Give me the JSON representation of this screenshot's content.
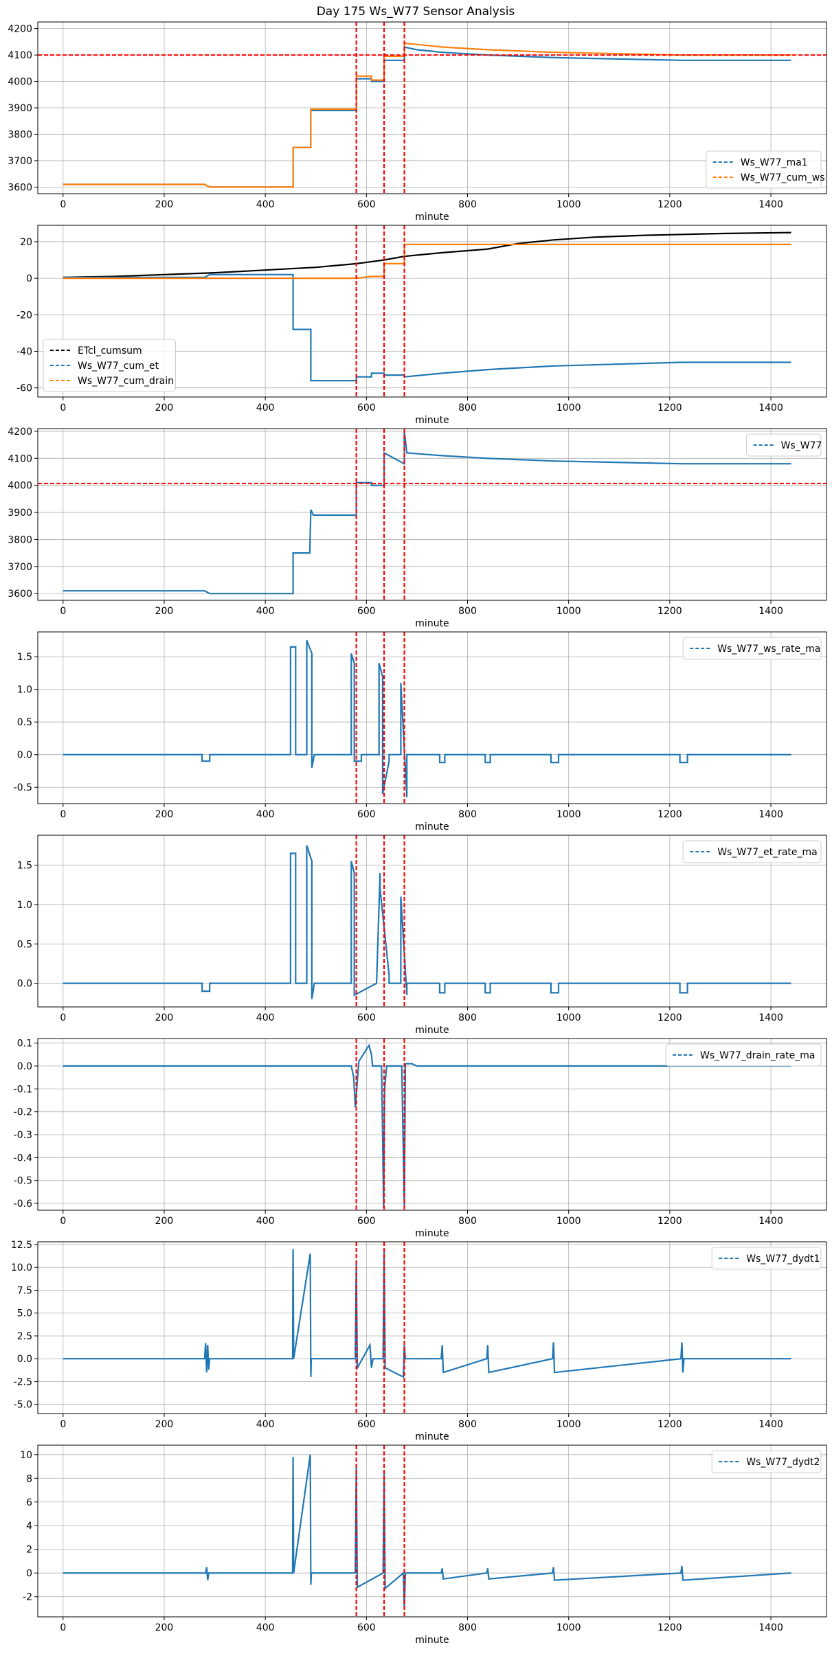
{
  "title": "Day 175 Ws_W77 Sensor Analysis",
  "colors": {
    "blue": "#1f77b4",
    "orange": "#ff7f0e",
    "black": "#000000",
    "red": "#ff0000",
    "grid": "#b0b0b0"
  },
  "event_lines_minute": [
    580,
    635,
    675
  ],
  "chart_data": [
    {
      "type": "line",
      "xlabel": "minute",
      "xlim": [
        -50,
        1510
      ],
      "xticks": [
        0,
        200,
        400,
        600,
        800,
        1000,
        1200,
        1400
      ],
      "ylim": [
        3575,
        4225
      ],
      "yticks": [
        3600,
        3700,
        3800,
        3900,
        4000,
        4100,
        4200
      ],
      "hline": 4100,
      "legend_loc": "lower-right",
      "series": [
        {
          "name": "Ws_W77_ma1",
          "color": "#1f77b4",
          "x": [
            0,
            280,
            290,
            455,
            455,
            490,
            490,
            580,
            580,
            610,
            610,
            635,
            635,
            675,
            675,
            700,
            750,
            840,
            970,
            1225,
            1440
          ],
          "y": [
            3610,
            3610,
            3600,
            3600,
            3750,
            3750,
            3890,
            3890,
            4010,
            4010,
            4000,
            4000,
            4080,
            4080,
            4130,
            4120,
            4110,
            4100,
            4090,
            4080,
            4080
          ]
        },
        {
          "name": "Ws_W77_cum_ws",
          "color": "#ff7f0e",
          "x": [
            0,
            280,
            290,
            455,
            455,
            490,
            490,
            580,
            580,
            610,
            610,
            635,
            635,
            675,
            675,
            750,
            840,
            970,
            1225,
            1440
          ],
          "y": [
            3610,
            3610,
            3600,
            3600,
            3750,
            3750,
            3895,
            3895,
            4020,
            4020,
            4005,
            4005,
            4095,
            4095,
            4145,
            4130,
            4120,
            4110,
            4100,
            4100
          ]
        }
      ]
    },
    {
      "type": "line",
      "xlabel": "minute",
      "xlim": [
        -50,
        1510
      ],
      "xticks": [
        0,
        200,
        400,
        600,
        800,
        1000,
        1200,
        1400
      ],
      "ylim": [
        -65,
        29
      ],
      "yticks": [
        -60,
        -40,
        -20,
        0,
        20
      ],
      "legend_loc": "lower-left",
      "series": [
        {
          "name": "ETcl_cumsum",
          "color": "#000000",
          "x": [
            0,
            100,
            200,
            300,
            400,
            500,
            580,
            635,
            675,
            750,
            840,
            900,
            970,
            1050,
            1150,
            1225,
            1300,
            1440
          ],
          "y": [
            0.5,
            1,
            2,
            3,
            4.5,
            6,
            8,
            10,
            12,
            14,
            16,
            19,
            21,
            22.5,
            23.5,
            24,
            24.5,
            25
          ]
        },
        {
          "name": "Ws_W77_cum_et",
          "color": "#1f77b4",
          "x": [
            0,
            280,
            290,
            455,
            455,
            490,
            490,
            580,
            580,
            610,
            610,
            635,
            635,
            675,
            675,
            750,
            840,
            970,
            1225,
            1440
          ],
          "y": [
            0.5,
            0.5,
            2,
            2,
            -28,
            -28,
            -56,
            -56,
            -54,
            -54,
            -52,
            -52,
            -53,
            -53,
            -54,
            -52,
            -50,
            -48,
            -46,
            -46
          ]
        },
        {
          "name": "Ws_W77_cum_drain",
          "color": "#ff7f0e",
          "x": [
            0,
            575,
            580,
            610,
            610,
            635,
            635,
            675,
            675,
            1440
          ],
          "y": [
            0,
            0,
            0,
            1,
            1,
            1,
            8,
            8,
            18.5,
            18.5
          ]
        }
      ]
    },
    {
      "type": "line",
      "xlabel": "minute",
      "xlim": [
        -50,
        1510
      ],
      "xticks": [
        0,
        200,
        400,
        600,
        800,
        1000,
        1200,
        1400
      ],
      "ylim": [
        3575,
        4210
      ],
      "yticks": [
        3600,
        3700,
        3800,
        3900,
        4000,
        4100,
        4200
      ],
      "hline": 4007,
      "legend_loc": "upper-right",
      "series": [
        {
          "name": "Ws_W77",
          "color": "#1f77b4",
          "x": [
            0,
            280,
            290,
            455,
            455,
            488,
            490,
            495,
            495,
            580,
            580,
            610,
            610,
            635,
            635,
            675,
            675,
            680,
            750,
            840,
            970,
            1225,
            1440
          ],
          "y": [
            3610,
            3610,
            3600,
            3600,
            3750,
            3750,
            3910,
            3890,
            3890,
            3890,
            4010,
            4010,
            4000,
            4000,
            4120,
            4080,
            4200,
            4120,
            4110,
            4100,
            4090,
            4080,
            4080
          ]
        }
      ]
    },
    {
      "type": "line",
      "xlabel": "minute",
      "xlim": [
        -50,
        1510
      ],
      "xticks": [
        0,
        200,
        400,
        600,
        800,
        1000,
        1200,
        1400
      ],
      "ylim": [
        -0.75,
        1.88
      ],
      "yticks": [
        -0.5,
        0.0,
        0.5,
        1.0,
        1.5
      ],
      "legend_loc": "upper-right",
      "series": [
        {
          "name": "Ws_W77_ws_rate_ma",
          "color": "#1f77b4",
          "x": [
            0,
            275,
            275,
            290,
            290,
            450,
            450,
            460,
            460,
            482,
            482,
            492,
            492,
            497,
            497,
            570,
            570,
            576,
            576,
            590,
            590,
            625,
            625,
            632,
            632,
            645,
            645,
            668,
            668,
            680,
            680,
            745,
            745,
            755,
            755,
            835,
            835,
            845,
            845,
            965,
            965,
            980,
            980,
            1220,
            1220,
            1235,
            1235,
            1440
          ],
          "y": [
            0,
            0,
            -0.1,
            -0.1,
            0,
            0,
            1.65,
            1.65,
            0,
            0,
            1.75,
            1.55,
            -0.2,
            0,
            0,
            0,
            1.55,
            1.4,
            -0.1,
            -0.1,
            0,
            0,
            1.4,
            1.2,
            -0.6,
            -0.1,
            0,
            0,
            1.1,
            -0.65,
            0,
            0,
            -0.12,
            -0.12,
            0,
            0,
            -0.12,
            -0.12,
            0,
            0,
            -0.12,
            -0.12,
            0,
            0,
            -0.12,
            -0.12,
            0,
            0
          ]
        }
      ]
    },
    {
      "type": "line",
      "xlabel": "minute",
      "xlim": [
        -50,
        1510
      ],
      "xticks": [
        0,
        200,
        400,
        600,
        800,
        1000,
        1200,
        1400
      ],
      "ylim": [
        -0.3,
        1.88
      ],
      "yticks": [
        0.0,
        0.5,
        1.0,
        1.5
      ],
      "legend_loc": "upper-right",
      "series": [
        {
          "name": "Ws_W77_et_rate_ma",
          "color": "#1f77b4",
          "x": [
            0,
            275,
            275,
            290,
            290,
            450,
            450,
            460,
            460,
            482,
            482,
            492,
            492,
            497,
            497,
            570,
            570,
            576,
            576,
            620,
            620,
            627,
            627,
            645,
            645,
            668,
            668,
            680,
            680,
            745,
            745,
            755,
            755,
            835,
            835,
            845,
            845,
            965,
            965,
            980,
            980,
            1220,
            1220,
            1235,
            1235,
            1440
          ],
          "y": [
            0,
            0,
            -0.1,
            -0.1,
            0,
            0,
            1.65,
            1.65,
            0,
            0,
            1.75,
            1.55,
            -0.2,
            0,
            0,
            0,
            1.55,
            1.4,
            -0.15,
            0,
            0,
            1.4,
            1.2,
            0.1,
            0,
            0,
            1.1,
            -0.15,
            0,
            0,
            -0.12,
            -0.12,
            0,
            0,
            -0.12,
            -0.12,
            0,
            0,
            -0.12,
            -0.12,
            0,
            0,
            -0.12,
            -0.12,
            0,
            0
          ]
        }
      ]
    },
    {
      "type": "line",
      "xlabel": "minute",
      "xlim": [
        -50,
        1510
      ],
      "xticks": [
        0,
        200,
        400,
        600,
        800,
        1000,
        1200,
        1400
      ],
      "ylim": [
        -0.63,
        0.12
      ],
      "yticks": [
        -0.6,
        -0.5,
        -0.4,
        -0.3,
        -0.2,
        -0.1,
        0.0,
        0.1
      ],
      "legend_loc": "upper-right",
      "series": [
        {
          "name": "Ws_W77_drain_rate_ma",
          "color": "#1f77b4",
          "x": [
            0,
            570,
            575,
            578,
            585,
            605,
            610,
            612,
            630,
            634,
            636,
            640,
            670,
            675,
            677,
            690,
            700,
            1440
          ],
          "y": [
            0,
            0,
            -0.05,
            -0.18,
            0.02,
            0.09,
            0.05,
            0,
            0,
            -0.62,
            -0.1,
            0,
            0,
            -0.62,
            0.01,
            0.01,
            0,
            0
          ]
        }
      ]
    },
    {
      "type": "line",
      "xlabel": "minute",
      "xlim": [
        -50,
        1510
      ],
      "xticks": [
        0,
        200,
        400,
        600,
        800,
        1000,
        1200,
        1400
      ],
      "ylim": [
        -6,
        12.8
      ],
      "yticks": [
        -5.0,
        -2.5,
        0.0,
        2.5,
        5.0,
        7.5,
        10.0,
        12.5
      ],
      "legend_loc": "upper-right",
      "series": [
        {
          "name": "Ws_W77_dydt1",
          "color": "#1f77b4",
          "x": [
            0,
            280,
            282,
            284,
            286,
            288,
            290,
            454,
            455,
            456,
            489,
            490,
            491,
            578,
            580,
            582,
            607,
            610,
            613,
            633,
            635,
            637,
            673,
            675,
            677,
            748,
            750,
            752,
            838,
            840,
            842,
            968,
            970,
            972,
            1222,
            1224,
            1226,
            1228,
            1440
          ],
          "y": [
            0,
            0,
            1.7,
            -1.5,
            1.5,
            -1.2,
            0,
            0,
            12,
            0,
            11.5,
            -2,
            0,
            0,
            10.5,
            -1,
            1.5,
            -1,
            0,
            0,
            12,
            -1,
            -2,
            1.5,
            0,
            0,
            1.5,
            -1.5,
            0,
            1.5,
            -1.5,
            0,
            1.8,
            -1.5,
            0,
            1.8,
            -1.5,
            0,
            0
          ]
        }
      ]
    },
    {
      "type": "line",
      "xlabel": "minute",
      "xlim": [
        -50,
        1510
      ],
      "xticks": [
        0,
        200,
        400,
        600,
        800,
        1000,
        1200,
        1400
      ],
      "ylim": [
        -3.7,
        10.8
      ],
      "yticks": [
        -2,
        0,
        2,
        4,
        6,
        8,
        10
      ],
      "legend_loc": "upper-right",
      "series": [
        {
          "name": "Ws_W77_dydt2",
          "color": "#1f77b4",
          "x": [
            0,
            282,
            284,
            286,
            288,
            454,
            455,
            456,
            489,
            490,
            491,
            578,
            580,
            582,
            633,
            635,
            637,
            673,
            675,
            677,
            748,
            750,
            752,
            838,
            840,
            842,
            968,
            970,
            972,
            1222,
            1224,
            1226,
            1440
          ],
          "y": [
            0,
            0,
            0.5,
            -0.6,
            0,
            0,
            9.8,
            0,
            10,
            -1,
            0,
            0,
            9,
            -1.2,
            0,
            8.5,
            -1.3,
            0,
            -3,
            0,
            0,
            0.4,
            -0.5,
            0,
            0.4,
            -0.5,
            0,
            0.5,
            -0.6,
            0,
            0.6,
            -0.6,
            0
          ]
        }
      ]
    }
  ]
}
